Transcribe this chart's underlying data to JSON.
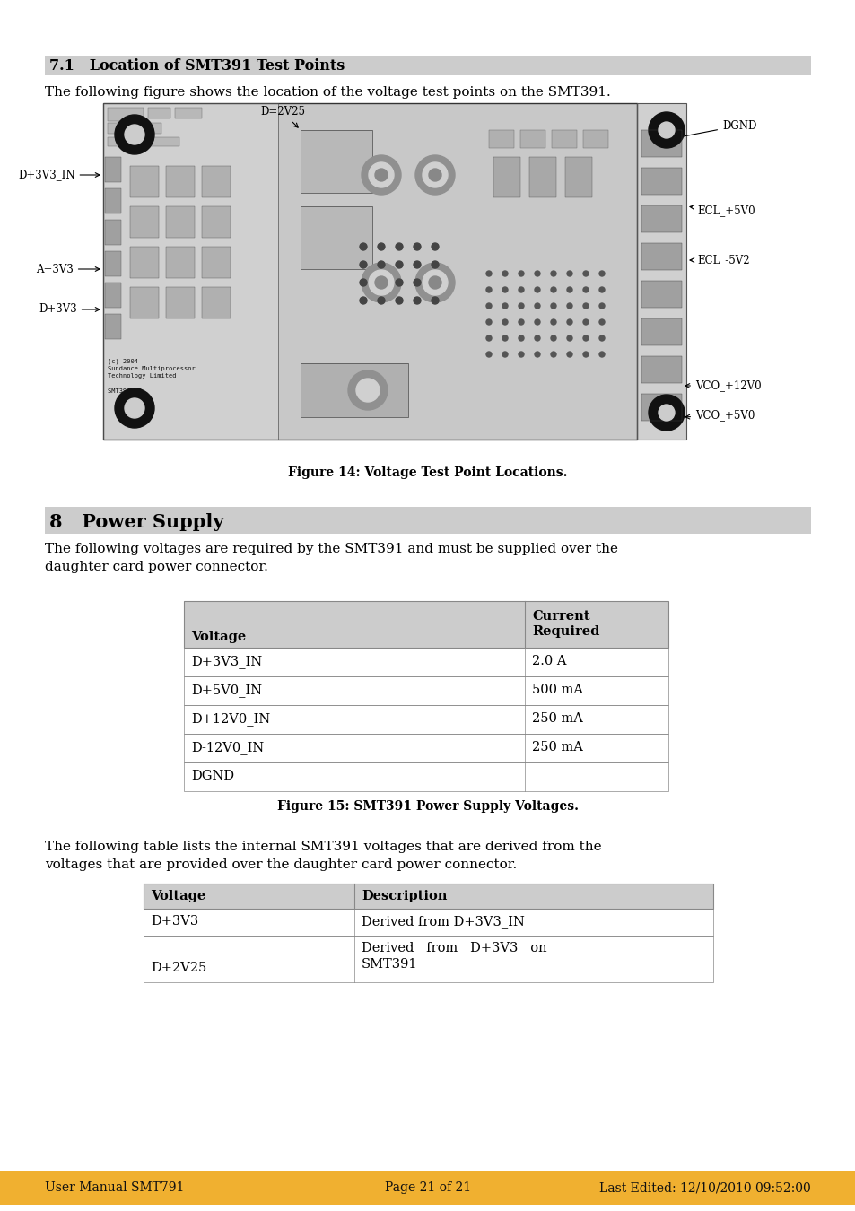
{
  "section_71_title": "7.1   Location of SMT391 Test Points",
  "section_71_body": "The following figure shows the location of the voltage test points on the SMT391.",
  "figure14_caption": "Figure 14: Voltage Test Point Locations.",
  "section_8_title": "8   Power Supply",
  "section_8_body_line1": "The following voltages are required by the SMT391 and must be supplied over the",
  "section_8_body_line2": "daughter card power connector.",
  "table1_headers": [
    "Voltage",
    "Current\nRequired"
  ],
  "table1_rows": [
    [
      "D+3V3_IN",
      "2.0 A"
    ],
    [
      "D+5V0_IN",
      "500 mA"
    ],
    [
      "D+12V0_IN",
      "250 mA"
    ],
    [
      "D-12V0_IN",
      "250 mA"
    ],
    [
      "DGND",
      ""
    ]
  ],
  "figure15_caption": "Figure 15: SMT391 Power Supply Voltages.",
  "section_8_body2_line1": "The following table lists the internal SMT391 voltages that are derived from the",
  "section_8_body2_line2": "voltages that are provided over the daughter card power connector.",
  "table2_headers": [
    "Voltage",
    "Description"
  ],
  "table2_rows": [
    [
      "D+3V3",
      "Derived from D+3V3_IN"
    ],
    [
      "D+2V25",
      "Derived   from   D+3V3   on\nSMT391"
    ]
  ],
  "footer_left": "User Manual SMT791",
  "footer_center": "Page 21 of 21",
  "footer_right": "Last Edited: 12/10/2010 09:52:00",
  "bg_color": "#ffffff",
  "section71_header_bg": "#cccccc",
  "section8_header_bg": "#cccccc",
  "table_header_bg": "#cccccc",
  "footer_bg": "#f0b030",
  "board_bg": "#e0e0e0",
  "board_detail": "#aaaaaa"
}
